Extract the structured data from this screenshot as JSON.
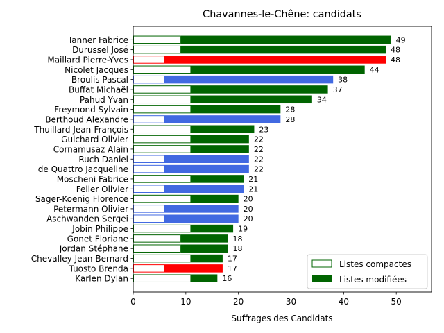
{
  "chart_data": {
    "type": "bar",
    "orientation": "horizontal-stacked",
    "title": "Chavannes-le-Chêne: candidats",
    "xlabel": "Suffrages des Candidats",
    "ylabel": "",
    "xlim": [
      0,
      56.7
    ],
    "xticks": [
      0,
      10,
      20,
      30,
      40,
      50
    ],
    "grid": false,
    "legend_position": "lower-right",
    "legend": [
      {
        "label": "Listes compactes",
        "style": "outline"
      },
      {
        "label": "Listes modifiées",
        "style": "filled"
      }
    ],
    "party_colors": {
      "green": "#006400",
      "blue": "#4169e1",
      "red": "#ff0000"
    },
    "candidates": [
      {
        "name": "Tanner Fabrice",
        "compact": 9,
        "total": 49,
        "party": "green"
      },
      {
        "name": "Durussel José",
        "compact": 9,
        "total": 48,
        "party": "green"
      },
      {
        "name": "Maillard Pierre-Yves",
        "compact": 6,
        "total": 48,
        "party": "red"
      },
      {
        "name": "Nicolet Jacques",
        "compact": 11,
        "total": 44,
        "party": "green"
      },
      {
        "name": "Broulis Pascal",
        "compact": 6,
        "total": 38,
        "party": "blue"
      },
      {
        "name": "Buffat Michaël",
        "compact": 11,
        "total": 37,
        "party": "green"
      },
      {
        "name": "Pahud Yvan",
        "compact": 11,
        "total": 34,
        "party": "green"
      },
      {
        "name": "Freymond Sylvain",
        "compact": 11,
        "total": 28,
        "party": "green"
      },
      {
        "name": "Berthoud Alexandre",
        "compact": 6,
        "total": 28,
        "party": "blue"
      },
      {
        "name": "Thuillard Jean-François",
        "compact": 11,
        "total": 23,
        "party": "green"
      },
      {
        "name": "Guichard Olivier",
        "compact": 11,
        "total": 22,
        "party": "green"
      },
      {
        "name": "Cornamusaz Alain",
        "compact": 11,
        "total": 22,
        "party": "green"
      },
      {
        "name": "Ruch Daniel",
        "compact": 6,
        "total": 22,
        "party": "blue"
      },
      {
        "name": "de Quattro Jacqueline",
        "compact": 6,
        "total": 22,
        "party": "blue"
      },
      {
        "name": "Moscheni Fabrice",
        "compact": 11,
        "total": 21,
        "party": "green"
      },
      {
        "name": "Feller Olivier",
        "compact": 6,
        "total": 21,
        "party": "blue"
      },
      {
        "name": "Sager-Koenig Florence",
        "compact": 11,
        "total": 20,
        "party": "green"
      },
      {
        "name": "Petermann Olivier",
        "compact": 6,
        "total": 20,
        "party": "blue"
      },
      {
        "name": "Aschwanden Sergei",
        "compact": 6,
        "total": 20,
        "party": "blue"
      },
      {
        "name": "Jobin Philippe",
        "compact": 11,
        "total": 19,
        "party": "green"
      },
      {
        "name": "Gonet Floriane",
        "compact": 9,
        "total": 18,
        "party": "green"
      },
      {
        "name": "Jordan Stéphane",
        "compact": 9,
        "total": 18,
        "party": "green"
      },
      {
        "name": "Chevalley Jean-Bernard",
        "compact": 11,
        "total": 17,
        "party": "green"
      },
      {
        "name": "Tuosto Brenda",
        "compact": 6,
        "total": 17,
        "party": "red"
      },
      {
        "name": "Karlen Dylan",
        "compact": 11,
        "total": 16,
        "party": "green"
      }
    ]
  }
}
